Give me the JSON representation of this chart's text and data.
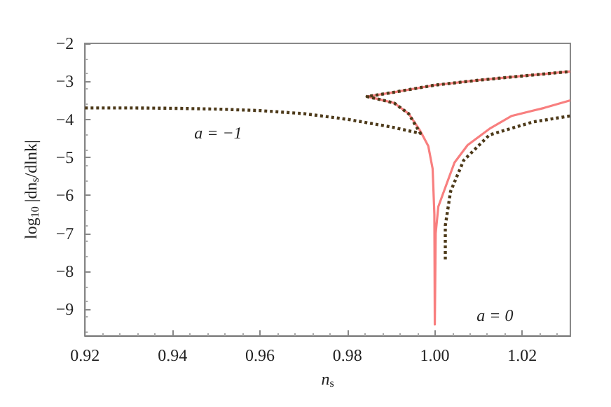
{
  "chart_data": {
    "type": "line",
    "xlabel": "n$_{s}$",
    "ylabel": "log$_{10}$ |dn$_{s}$/dlnk|",
    "xlim": [
      0.92,
      1.031
    ],
    "ylim": [
      -9.7,
      -2
    ],
    "xticks": [
      0.92,
      0.94,
      0.96,
      0.98,
      {
        "value": 1.0,
        "label": "1.00"
      },
      1.02
    ],
    "yticks": [
      -9,
      -8,
      -7,
      -6,
      -5,
      -4,
      -3,
      -2
    ],
    "grid": false,
    "marker": "none",
    "series": [
      {
        "color": "#f87f7f",
        "line_style": "solid",
        "x": [
          1.031,
          1.02,
          1.01,
          1.0,
          0.99,
          0.9845,
          0.9875,
          0.9907,
          0.994,
          0.9967,
          0.9985,
          0.9995,
          0.9999,
          1.0,
          1.0002,
          1.0008,
          1.0027,
          1.0045,
          1.0075,
          1.0125,
          1.0176,
          1.025,
          1.031
        ],
        "values": [
          -2.74,
          -2.86,
          -2.97,
          -3.1,
          -3.3,
          -3.4,
          -3.48,
          -3.57,
          -3.85,
          -4.31,
          -4.7,
          -5.3,
          -6.5,
          -9.4,
          -7.0,
          -6.3,
          -5.7,
          -5.14,
          -4.68,
          -4.25,
          -3.91,
          -3.7,
          -3.5
        ]
      },
      {
        "color": "#4d3a1a",
        "line_style": "dotted",
        "x": [
          0.92,
          0.93,
          0.94,
          0.95,
          0.96,
          0.97,
          0.98,
          0.99,
          0.9967,
          0.994,
          0.9907,
          0.9875,
          0.9845,
          0.99,
          1.0,
          1.01,
          1.02,
          1.031
        ],
        "values": [
          -3.7,
          -3.7,
          -3.71,
          -3.73,
          -3.77,
          -3.85,
          -4.0,
          -4.2,
          -4.37,
          -3.85,
          -3.57,
          -3.48,
          -3.4,
          -3.3,
          -3.1,
          -2.97,
          -2.86,
          -2.74
        ]
      },
      {
        "color": "#4d3a1a",
        "line_style": "dotted",
        "x": [
          1.0024,
          1.0024,
          1.0036,
          1.0066,
          1.0125,
          1.0224,
          1.031
        ],
        "values": [
          -7.69,
          -6.8,
          -5.9,
          -5.08,
          -4.41,
          -4.07,
          -3.91
        ]
      }
    ],
    "annotations": [
      "a = −1",
      "a = 0"
    ]
  }
}
